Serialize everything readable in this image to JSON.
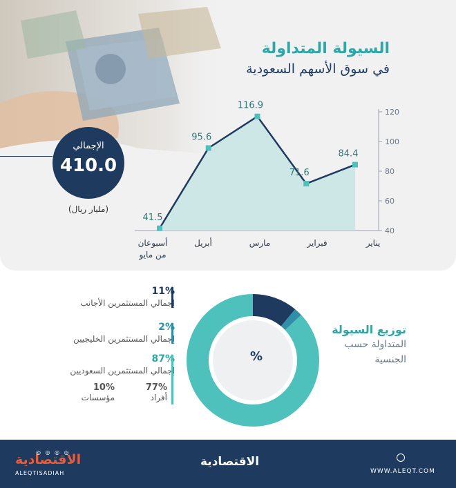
{
  "title": {
    "line1": "السيولة المتداولة",
    "line2": "في سوق الأسهم السعودية"
  },
  "total": {
    "label": "الإجمالي",
    "value": "410.0",
    "unit": "(مليار ريال)"
  },
  "chart_data": [
    {
      "type": "area",
      "categories": [
        "أسبوعان من مايو",
        "أبريل",
        "مارس",
        "فبراير",
        "يناير"
      ],
      "values": [
        41.5,
        95.6,
        116.9,
        71.6,
        84.4
      ],
      "value_labels": [
        "41.5",
        "95.6",
        "116.9",
        "71.6",
        "84.4"
      ],
      "category_lines": [
        [
          "أسبوعان",
          "من مايو"
        ],
        [
          "أبريل"
        ],
        [
          "مارس"
        ],
        [
          "فبراير"
        ],
        [
          "يناير"
        ]
      ],
      "y_ticks": [
        "40",
        "60",
        "80",
        "100",
        "120"
      ],
      "y_tick_values": [
        40,
        60,
        80,
        100,
        120
      ],
      "ylim": [
        40,
        120
      ],
      "y_axis_side": "right",
      "colors": {
        "line": "#1e3a5f",
        "fill": "#bfe3e0",
        "marker": "#4fc1bd",
        "label": "#2c7a78"
      }
    },
    {
      "type": "pie",
      "title": "توزيع السيولة المتداولة حسب الجنسية",
      "center_label": "%",
      "slices": [
        {
          "label": "إجمالي المستثمرين الأجانب",
          "value": 11,
          "pct": "11%",
          "color": "#1e3a5f"
        },
        {
          "label": "إجمالي المستثمرين الخليجيين",
          "value": 2,
          "pct": "2%",
          "color": "#2f8fa8"
        },
        {
          "label": "إجمالي المستثمرين السعوديين",
          "value": 87,
          "pct": "87%",
          "color": "#4fc1bd"
        }
      ],
      "saudi_breakdown": [
        {
          "label": "أفراد",
          "pct": "77%"
        },
        {
          "label": "مؤسسات",
          "pct": "10%"
        }
      ]
    }
  ],
  "donut_title": {
    "line1": "توزيع السيولة",
    "line2": "المتداولة حسب",
    "line3": "الجنسية"
  },
  "footer": {
    "brand_center": "الاقتصادية",
    "brand_left": "الاقتصادية",
    "brand_left_sub": "ALEQTISADIAH",
    "website": "WWW.ALEQT.COM",
    "social_icons": "◎ ◎ ◎ ◎"
  },
  "colors": {
    "navy": "#1e3a5f",
    "teal": "#2fa7a7",
    "panel": "#f1f1f2"
  }
}
